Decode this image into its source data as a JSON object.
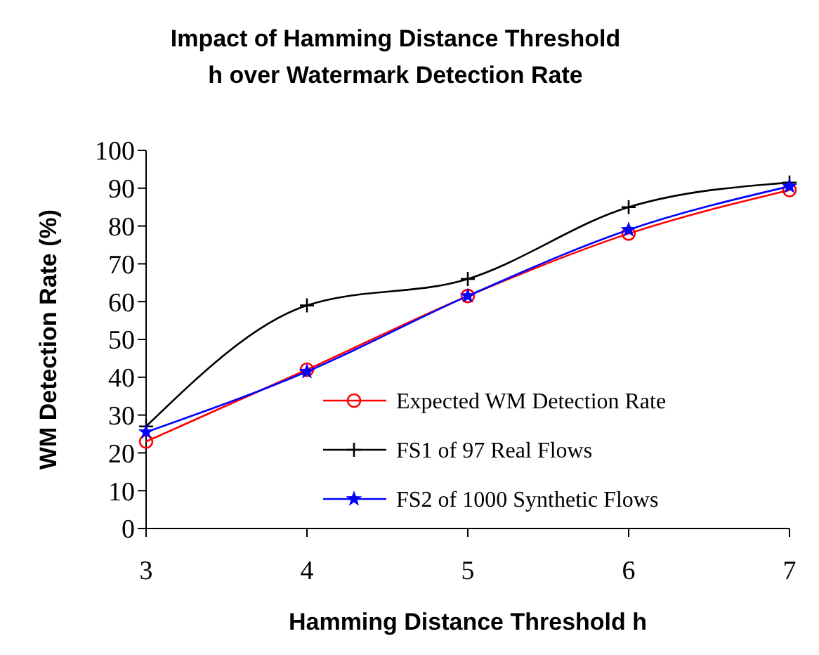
{
  "chart_data": {
    "type": "line",
    "title": "Impact of Hamming Distance Threshold\nh over Watermark Detection Rate",
    "xlabel": "Hamming Distance Threshold h",
    "ylabel": "WM Detection Rate (%)",
    "x": [
      3,
      4,
      5,
      6,
      7
    ],
    "xlim": [
      3,
      7
    ],
    "xticks": [
      3,
      4,
      5,
      6,
      7
    ],
    "ylim": [
      0,
      100
    ],
    "yticks": [
      0,
      10,
      20,
      30,
      40,
      50,
      60,
      70,
      80,
      90,
      100
    ],
    "series": [
      {
        "name": "Expected WM Detection Rate",
        "color": "#ff0000",
        "marker": "circle",
        "values": [
          23,
          42,
          61.5,
          78,
          89.5
        ]
      },
      {
        "name": "FS1 of 97 Real Flows",
        "color": "#000000",
        "marker": "cross",
        "values": [
          27,
          59,
          66,
          85,
          91.5
        ]
      },
      {
        "name": "FS2 of 1000 Synthetic Flows",
        "color": "#0000ff",
        "marker": "star",
        "values": [
          25.5,
          41.5,
          61.5,
          79,
          90.5
        ]
      }
    ],
    "legend": "bottom right",
    "grid": false,
    "line_style": "solid"
  }
}
